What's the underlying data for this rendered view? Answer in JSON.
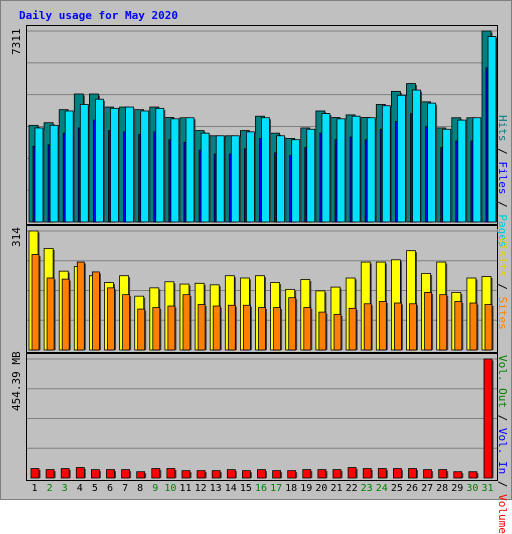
{
  "header": {
    "title": "Daily usage for May 2020"
  },
  "chart_data": [
    {
      "type": "bar",
      "title": "Daily usage for May 2020",
      "y_max_label": "7311",
      "ylim": [
        0,
        7311
      ],
      "grid": true,
      "categories": [
        "1",
        "2",
        "3",
        "4",
        "5",
        "6",
        "7",
        "8",
        "9",
        "10",
        "11",
        "12",
        "13",
        "14",
        "15",
        "16",
        "17",
        "18",
        "19",
        "20",
        "21",
        "22",
        "23",
        "24",
        "25",
        "26",
        "27",
        "28",
        "29",
        "30",
        "31"
      ],
      "series": [
        {
          "name": "Hits",
          "color": "#008080",
          "values": [
            3700,
            3800,
            4300,
            4900,
            4900,
            4400,
            4400,
            4300,
            4400,
            4000,
            3990,
            3500,
            3300,
            3300,
            3500,
            4050,
            3400,
            3200,
            3600,
            4250,
            4000,
            4100,
            4000,
            4500,
            5000,
            5300,
            4600,
            3600,
            3990,
            3990,
            7311
          ]
        },
        {
          "name": "Files",
          "color": "#0000ff",
          "values": [
            2900,
            2950,
            3400,
            3600,
            3900,
            3500,
            3450,
            3350,
            3450,
            3150,
            3050,
            2750,
            2600,
            2600,
            2800,
            3200,
            2650,
            2550,
            2850,
            3400,
            3150,
            3250,
            3150,
            3550,
            3850,
            4150,
            3650,
            2850,
            3100,
            3100,
            5900
          ]
        },
        {
          "name": "Pages",
          "color": "#00e0ff",
          "values": [
            3600,
            3700,
            4250,
            4500,
            4700,
            4350,
            4400,
            4250,
            4350,
            3950,
            3990,
            3400,
            3300,
            3300,
            3450,
            3990,
            3300,
            3150,
            3550,
            4150,
            3950,
            4050,
            3990,
            4450,
            4850,
            5050,
            4550,
            3550,
            3900,
            3990,
            7100
          ]
        }
      ]
    },
    {
      "type": "bar",
      "y_max_label": "314",
      "ylim": [
        0,
        314
      ],
      "grid": true,
      "categories": [
        "1",
        "2",
        "3",
        "4",
        "5",
        "6",
        "7",
        "8",
        "9",
        "10",
        "11",
        "12",
        "13",
        "14",
        "15",
        "16",
        "17",
        "18",
        "19",
        "20",
        "21",
        "22",
        "23",
        "24",
        "25",
        "26",
        "27",
        "28",
        "29",
        "30",
        "31"
      ],
      "series": [
        {
          "name": "Visits",
          "color": "#ffff00",
          "values": [
            314,
            268,
            208,
            220,
            196,
            178,
            196,
            142,
            164,
            180,
            174,
            176,
            172,
            196,
            190,
            196,
            178,
            160,
            186,
            156,
            166,
            190,
            232,
            232,
            238,
            262,
            202,
            232,
            152,
            190,
            194
          ]
        },
        {
          "name": "Sites",
          "color": "#ff8000",
          "values": [
            252,
            190,
            187,
            232,
            206,
            164,
            146,
            108,
            112,
            116,
            146,
            120,
            116,
            118,
            118,
            112,
            112,
            138,
            112,
            100,
            94,
            110,
            122,
            128,
            124,
            122,
            152,
            146,
            128,
            124,
            120
          ]
        }
      ]
    },
    {
      "type": "bar",
      "y_max_label": "454.39 MB",
      "ylim": [
        0,
        454.39
      ],
      "grid": true,
      "categories": [
        "1",
        "2",
        "3",
        "4",
        "5",
        "6",
        "7",
        "8",
        "9",
        "10",
        "11",
        "12",
        "13",
        "14",
        "15",
        "16",
        "17",
        "18",
        "19",
        "20",
        "21",
        "22",
        "23",
        "24",
        "25",
        "26",
        "27",
        "28",
        "29",
        "30",
        "31"
      ],
      "series": [
        {
          "name": "Volume",
          "color": "#ff0000",
          "values": [
            36,
            32,
            36,
            40,
            32,
            32,
            32,
            24,
            36,
            36,
            28,
            28,
            28,
            32,
            28,
            32,
            28,
            28,
            32,
            32,
            32,
            40,
            36,
            36,
            36,
            36,
            32,
            32,
            24,
            24,
            454.39
          ]
        }
      ]
    }
  ],
  "right_legends": [
    [
      {
        "text": "Hits",
        "color": "#008080"
      },
      {
        "text": " / ",
        "color": "#000000"
      },
      {
        "text": "Files",
        "color": "#0000ff"
      },
      {
        "text": " / ",
        "color": "#000000"
      },
      {
        "text": "Pages",
        "color": "#00c8e0"
      }
    ],
    [
      {
        "text": "Visits",
        "color": "#e0d000"
      },
      {
        "text": " / ",
        "color": "#000000"
      },
      {
        "text": "Sites",
        "color": "#ff8000"
      }
    ],
    [
      {
        "text": "Vol. Out",
        "color": "#008000"
      },
      {
        "text": " / ",
        "color": "#000000"
      },
      {
        "text": "Vol. In",
        "color": "#0000ff"
      },
      {
        "text": " / ",
        "color": "#000000"
      },
      {
        "text": "Volume",
        "color": "#ff0000"
      }
    ]
  ],
  "x_axis": {
    "days": [
      "1",
      "2",
      "3",
      "4",
      "5",
      "6",
      "7",
      "8",
      "9",
      "10",
      "11",
      "12",
      "13",
      "14",
      "15",
      "16",
      "17",
      "18",
      "19",
      "20",
      "21",
      "22",
      "23",
      "24",
      "25",
      "26",
      "27",
      "28",
      "29",
      "30",
      "31"
    ],
    "weekend_color": "#008000",
    "weekday_color": "#000000",
    "weekend_days": [
      "2",
      "3",
      "9",
      "10",
      "16",
      "17",
      "23",
      "24",
      "30",
      "31"
    ]
  }
}
